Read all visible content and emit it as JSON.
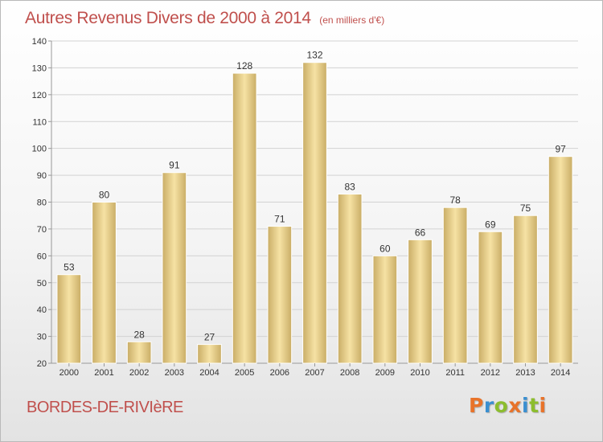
{
  "header": {
    "title": "Autres Revenus Divers de 2000 à 2014",
    "unit": "(en milliers d'€)"
  },
  "footer": {
    "commune": "BORDES-DE-RIVIèRE",
    "brand": "Proxiti",
    "brand_colors": [
      "#e8732a",
      "#3a8fd0",
      "#8cbd2e",
      "#e8732a",
      "#3a8fd0",
      "#8cbd2e",
      "#e8732a"
    ]
  },
  "colors": {
    "title": "#c0504d",
    "bar_light": "#f6e2a4",
    "bar_dark": "#c9ad66",
    "grid": "#d2d2d2",
    "axis_text": "#333333"
  },
  "chart_data": {
    "type": "bar",
    "title": "Autres Revenus Divers de 2000 à 2014",
    "xlabel": "",
    "ylabel": "",
    "ylim": [
      20,
      140
    ],
    "yticks": [
      20,
      30,
      40,
      50,
      60,
      70,
      80,
      90,
      100,
      110,
      120,
      130,
      140
    ],
    "grid": true,
    "categories": [
      "2000",
      "2001",
      "2002",
      "2003",
      "2004",
      "2005",
      "2006",
      "2007",
      "2008",
      "2009",
      "2010",
      "2011",
      "2012",
      "2013",
      "2014"
    ],
    "values": [
      53,
      80,
      28,
      91,
      27,
      128,
      71,
      132,
      83,
      60,
      66,
      78,
      69,
      75,
      97
    ]
  }
}
